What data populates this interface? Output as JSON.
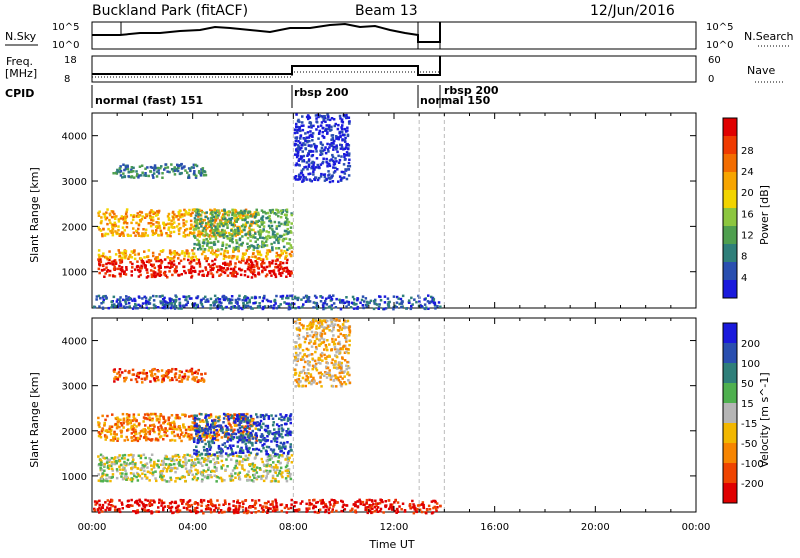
{
  "header": {
    "site": "Buckland Park (fitACF)",
    "beam": "Beam 13",
    "date": "12/Jun/2016"
  },
  "strip_noise": {
    "left_label": "N.Sky",
    "right_label": "N.Search",
    "left_ticks": [
      "10^5",
      "10^0"
    ],
    "right_ticks": [
      "10^5",
      "10^0"
    ]
  },
  "strip_freq": {
    "left_label_1": "Freq.",
    "left_label_2": "[MHz]",
    "right_label": "Nave",
    "left_ticks": [
      "18",
      "8"
    ],
    "right_ticks": [
      "60",
      "0"
    ]
  },
  "cpid": {
    "label": "CPID",
    "segments": [
      {
        "name": "normal (fast) 151",
        "start_hour": 0
      },
      {
        "name": "rbsp 200",
        "start_hour": 8
      },
      {
        "name": "normal 150",
        "start_hour": 13
      },
      {
        "name": "rbsp 200",
        "start_hour": 14
      }
    ]
  },
  "colors": {
    "power_scale": [
      "#1a1adc",
      "#2a4fb0",
      "#2f7f7a",
      "#4f9f4f",
      "#8cc63f",
      "#f2d400",
      "#f7a500",
      "#f36d00",
      "#ef3a00",
      "#e00000"
    ],
    "velocity_scale": [
      "#1a1adc",
      "#2a4fb0",
      "#2f7f7a",
      "#4fb04f",
      "#b5b5b5",
      "#f2b700",
      "#f78500",
      "#ef4400",
      "#e00000"
    ]
  },
  "chart_data": [
    {
      "type": "heatmap",
      "title": "Power",
      "xlabel": "",
      "ylabel": "Slant Range [km]",
      "xlim": [
        0,
        24
      ],
      "ylim": [
        200,
        4500
      ],
      "x_ticks": [
        "00:00",
        "04:00",
        "08:00",
        "12:00",
        "16:00",
        "20:00",
        "00:00"
      ],
      "y_ticks": [
        "1000",
        "2000",
        "3000",
        "4000"
      ],
      "colorbar": {
        "label": "Power [dB]",
        "ticks": [
          "4",
          "8",
          "12",
          "16",
          "20",
          "24",
          "28"
        ]
      },
      "regions": [
        {
          "t": [
            0.2,
            7.9
          ],
          "r": [
            900,
            1300
          ],
          "level": 9
        },
        {
          "t": [
            0.2,
            7.9
          ],
          "r": [
            1300,
            1500
          ],
          "level": 6
        },
        {
          "t": [
            0.2,
            6.5
          ],
          "r": [
            1800,
            2400
          ],
          "level": 6
        },
        {
          "t": [
            0.8,
            4.5
          ],
          "r": [
            3100,
            3400
          ],
          "level": 2
        },
        {
          "t": [
            4.0,
            7.9
          ],
          "r": [
            1500,
            2400
          ],
          "level": 3
        },
        {
          "t": [
            8.0,
            10.2
          ],
          "r": [
            3000,
            4500
          ],
          "level": 0
        },
        {
          "t": [
            0.0,
            13.8
          ],
          "r": [
            200,
            500
          ],
          "level": 1
        }
      ]
    },
    {
      "type": "heatmap",
      "title": "Velocity",
      "xlabel": "Time UT",
      "ylabel": "Slant Range [km]",
      "xlim": [
        0,
        24
      ],
      "ylim": [
        200,
        4500
      ],
      "x_ticks": [
        "00:00",
        "04:00",
        "08:00",
        "12:00",
        "16:00",
        "20:00",
        "00:00"
      ],
      "y_ticks": [
        "1000",
        "2000",
        "3000",
        "4000"
      ],
      "colorbar": {
        "label": "Velocity [m s^-1]",
        "ticks": [
          "200",
          "100",
          "50",
          "15",
          "-15",
          "-50",
          "-100",
          "-200"
        ]
      },
      "regions": [
        {
          "t": [
            0.2,
            7.9
          ],
          "r": [
            900,
            1500
          ],
          "level": 4
        },
        {
          "t": [
            0.2,
            6.5
          ],
          "r": [
            1800,
            2400
          ],
          "level": 6
        },
        {
          "t": [
            0.8,
            4.5
          ],
          "r": [
            3100,
            3400
          ],
          "level": 7
        },
        {
          "t": [
            4.0,
            7.9
          ],
          "r": [
            1500,
            2400
          ],
          "level": 1
        },
        {
          "t": [
            8.0,
            10.2
          ],
          "r": [
            3000,
            4500
          ],
          "level": 5
        },
        {
          "t": [
            0.0,
            13.8
          ],
          "r": [
            200,
            500
          ],
          "level": 8
        }
      ]
    }
  ]
}
